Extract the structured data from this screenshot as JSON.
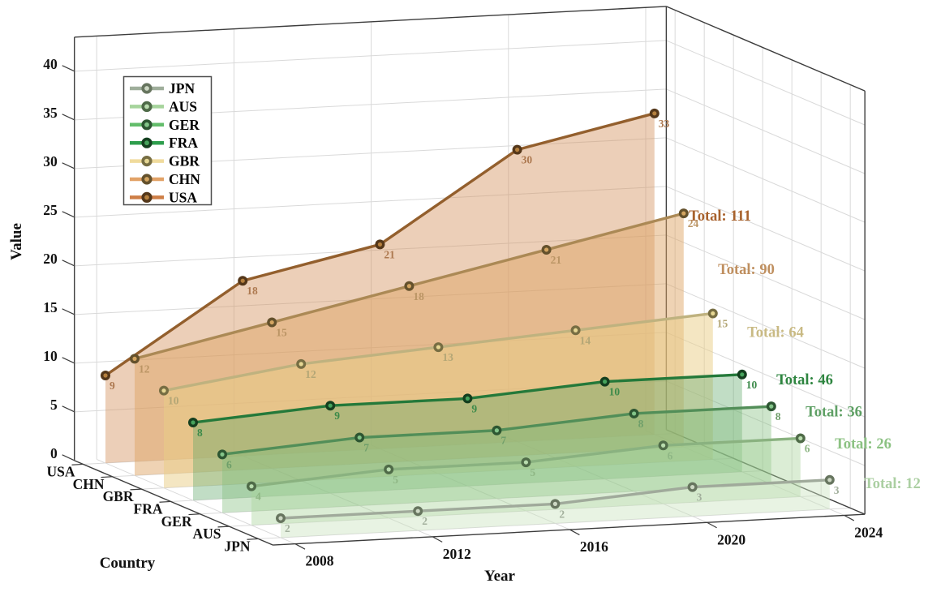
{
  "figure": {
    "background": "#ffffff",
    "grid_color": "#d9d9d9",
    "axis_color": "#3c3c3c",
    "tick_text_color": "#111111",
    "legend_border_color": "#4d4d4d"
  },
  "chart_data": {
    "type": "line",
    "projection": "3d",
    "title": "",
    "xlabel": "Year",
    "ylabel": "Country",
    "zlabel": "Value",
    "x": [
      2008,
      2012,
      2016,
      2020,
      2024
    ],
    "x_tick_labels": [
      "2008",
      "2012",
      "2016",
      "2020",
      "2024"
    ],
    "z_ticks": [
      0,
      5,
      10,
      15,
      20,
      25,
      30,
      35,
      40
    ],
    "zlim": [
      0,
      40
    ],
    "grid": true,
    "legend_position": "upper-left",
    "country_axis_back_to_front": [
      "USA",
      "CHN",
      "GBR",
      "FRA",
      "GER",
      "AUS",
      "JPN"
    ],
    "series": [
      {
        "name": "JPN",
        "values": [
          2,
          2,
          2,
          3,
          3
        ],
        "total": 12,
        "total_label": "Total: 12",
        "line": "#a0aa9b",
        "legend": "#9fae9b",
        "ring": "#67755f",
        "center": "#cdd8c4",
        "fill": "rgba(204,228,192,0.45)",
        "label_color": "#a3b09d",
        "total_color": "#abcfa2"
      },
      {
        "name": "AUS",
        "values": [
          4,
          5,
          5,
          6,
          6
        ],
        "total": 26,
        "total_label": "Total: 26",
        "line": "#8ab280",
        "legend": "#a6d49c",
        "ring": "#4f6b48",
        "center": "#b9dcae",
        "fill": "rgba(170,212,156,0.42)",
        "label_color": "#8fb785",
        "total_color": "#8cc283"
      },
      {
        "name": "GER",
        "values": [
          6,
          7,
          7,
          8,
          8
        ],
        "total": 36,
        "total_label": "Total: 36",
        "line": "#528e58",
        "legend": "#63bd6b",
        "ring": "#2d5632",
        "center": "#83c489",
        "fill": "rgba(130,190,124,0.40)",
        "label_color": "#6f9f6a",
        "total_color": "#5fa065"
      },
      {
        "name": "FRA",
        "values": [
          8,
          9,
          9,
          10,
          10
        ],
        "total": 46,
        "total_label": "Total: 46",
        "line": "#24793a",
        "legend": "#2e9e4d",
        "ring": "#143f1f",
        "center": "#46a35c",
        "fill": "rgba(92,166,102,0.38)",
        "label_color": "#3c8a4a",
        "total_color": "#2e8540"
      },
      {
        "name": "GBR",
        "values": [
          10,
          12,
          13,
          14,
          15
        ],
        "total": 64,
        "total_label": "Total: 64",
        "line": "#bfb27f",
        "legend": "#f0db9d",
        "ring": "#776e43",
        "center": "#e6d794",
        "fill": "rgba(233,206,134,0.50)",
        "label_color": "#b3a676",
        "total_color": "#c9ba84"
      },
      {
        "name": "CHN",
        "values": [
          12,
          15,
          18,
          21,
          24
        ],
        "total": 90,
        "total_label": "Total: 90",
        "line": "#ab8955",
        "legend": "#e2a267",
        "ring": "#64512c",
        "center": "#d3a561",
        "fill": "rgba(221,163,99,0.48)",
        "label_color": "#bb9565",
        "total_color": "#bf8f5f"
      },
      {
        "name": "USA",
        "values": [
          9,
          18,
          21,
          30,
          33
        ],
        "total": 111,
        "total_label": "Total: 111",
        "line": "#935f2d",
        "legend": "#ce7e46",
        "ring": "#54371a",
        "center": "#b5803e",
        "fill": "rgba(212,149,97,0.45)",
        "label_color": "#ad7950",
        "total_color": "#a8622d"
      }
    ]
  }
}
